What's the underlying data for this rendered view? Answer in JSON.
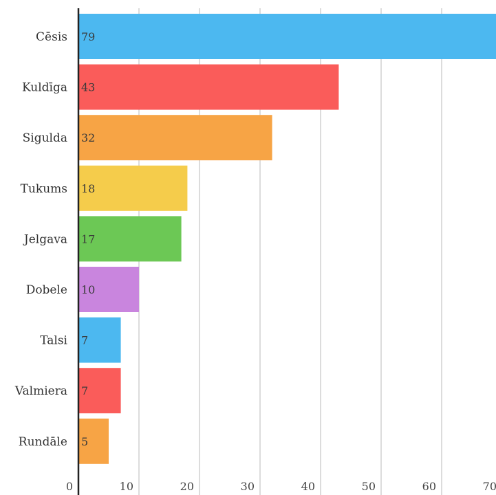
{
  "chart_data": {
    "type": "bar",
    "orientation": "horizontal",
    "title": "",
    "xlabel": "",
    "ylabel": "",
    "categories": [
      "Cēsis",
      "Kuldīga",
      "Sigulda",
      "Tukums",
      "Jelgava",
      "Dobele",
      "Talsi",
      "Valmiera",
      "Rundāle"
    ],
    "values": [
      79,
      43,
      32,
      18,
      17,
      10,
      7,
      7,
      5
    ],
    "data_labels": [
      "79",
      "43",
      "32",
      "18",
      "17",
      "10",
      "7",
      "7",
      "5"
    ],
    "bar_colors": [
      "#4cb8f0",
      "#fa5c5a",
      "#f7a445",
      "#f5cc4b",
      "#6cc855",
      "#c985de",
      "#4cb8f0",
      "#fa5c5a",
      "#f7a445"
    ],
    "x_ticks": [
      0,
      10,
      20,
      30,
      40,
      50,
      60,
      70
    ],
    "x_tick_labels": [
      "0",
      "10",
      "20",
      "30",
      "40",
      "50",
      "60",
      "70"
    ],
    "xlim": [
      0,
      79
    ],
    "grid": "vertical",
    "legend": "none"
  }
}
